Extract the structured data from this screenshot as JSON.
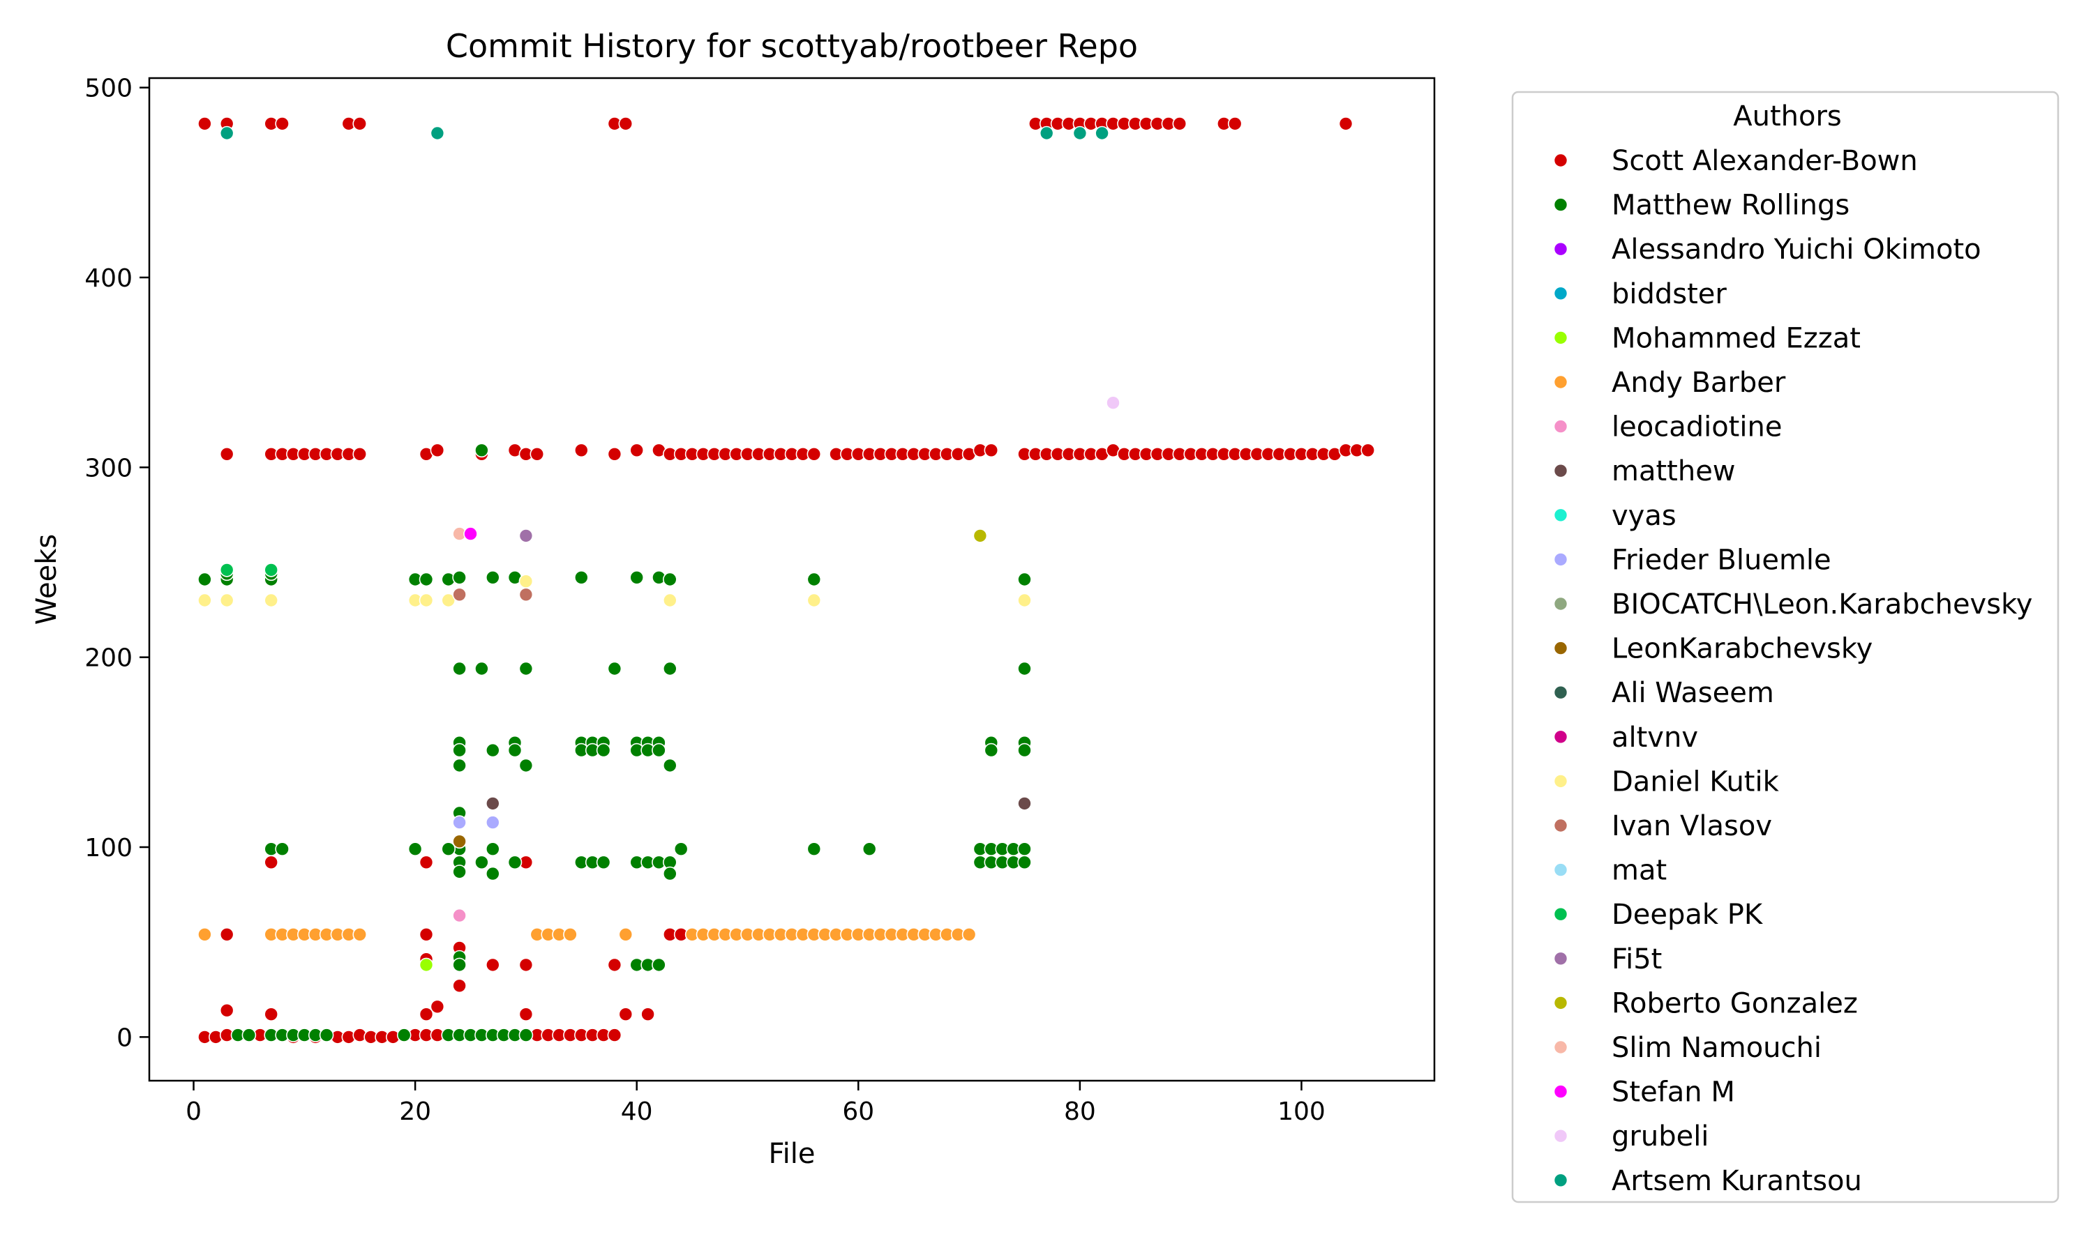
{
  "chart_data": {
    "type": "scatter",
    "title": "Commit History for scottyab/rootbeer Repo",
    "xlabel": "File",
    "ylabel": "Weeks",
    "xlim": [
      -4,
      112
    ],
    "ylim": [
      -23,
      505
    ],
    "xticks": [
      0,
      20,
      40,
      60,
      80,
      100
    ],
    "yticks": [
      0,
      100,
      200,
      300,
      400,
      500
    ],
    "grid": false,
    "legend": {
      "title": "Authors",
      "placement": "outside-right"
    },
    "series": [
      {
        "name": "Scott Alexander-Bown",
        "color": "#d40000",
        "ranges": [
          [
            1,
            1,
            0
          ],
          [
            2,
            2,
            0
          ],
          [
            3,
            3,
            1
          ],
          [
            5,
            8,
            1
          ],
          [
            9,
            9,
            0
          ],
          [
            11,
            11,
            0
          ],
          [
            13,
            14,
            0
          ],
          [
            15,
            15,
            1
          ],
          [
            16,
            18,
            0
          ],
          [
            20,
            31,
            1
          ],
          [
            32,
            38,
            1
          ],
          [
            41,
            41,
            12
          ],
          [
            1,
            1,
            481
          ],
          [
            3,
            3,
            481
          ],
          [
            7,
            8,
            481
          ],
          [
            14,
            15,
            481
          ],
          [
            38,
            39,
            481
          ],
          [
            76,
            89,
            481
          ],
          [
            93,
            94,
            481
          ],
          [
            104,
            104,
            481
          ],
          [
            3,
            3,
            307
          ],
          [
            7,
            15,
            307
          ],
          [
            21,
            21,
            307
          ],
          [
            22,
            22,
            309
          ],
          [
            26,
            26,
            307
          ],
          [
            29,
            29,
            309
          ],
          [
            30,
            31,
            307
          ],
          [
            35,
            35,
            309
          ],
          [
            38,
            38,
            307
          ],
          [
            40,
            40,
            309
          ],
          [
            42,
            42,
            309
          ],
          [
            43,
            56,
            307
          ],
          [
            58,
            70,
            307
          ],
          [
            71,
            72,
            309
          ],
          [
            75,
            82,
            307
          ],
          [
            83,
            83,
            309
          ],
          [
            84,
            103,
            307
          ],
          [
            104,
            106,
            309
          ]
        ],
        "points": [
          [
            3,
            54
          ],
          [
            3,
            14
          ],
          [
            7,
            12
          ],
          [
            7,
            92
          ],
          [
            21,
            92
          ],
          [
            21,
            54
          ],
          [
            21,
            41
          ],
          [
            21,
            12
          ],
          [
            22,
            16
          ],
          [
            24,
            47
          ],
          [
            24,
            38
          ],
          [
            24,
            27
          ],
          [
            27,
            38
          ],
          [
            30,
            92
          ],
          [
            30,
            38
          ],
          [
            30,
            12
          ],
          [
            38,
            38
          ],
          [
            39,
            12
          ],
          [
            43,
            54
          ],
          [
            44,
            54
          ]
        ]
      },
      {
        "name": "Matthew Rollings",
        "color": "#008000",
        "ranges": [
          [
            4,
            5,
            1
          ],
          [
            7,
            8,
            1
          ],
          [
            9,
            12,
            1
          ],
          [
            19,
            19,
            1
          ],
          [
            23,
            30,
            1
          ],
          [
            71,
            74,
            99
          ],
          [
            71,
            74,
            92
          ],
          [
            40,
            42,
            92
          ],
          [
            35,
            37,
            92
          ],
          [
            35,
            37,
            155
          ],
          [
            35,
            37,
            151
          ],
          [
            40,
            42,
            155
          ],
          [
            40,
            42,
            151
          ]
        ],
        "points": [
          [
            1,
            241
          ],
          [
            3,
            241
          ],
          [
            3,
            244
          ],
          [
            7,
            241
          ],
          [
            7,
            244
          ],
          [
            20,
            241
          ],
          [
            21,
            241
          ],
          [
            23,
            241
          ],
          [
            24,
            242
          ],
          [
            24,
            194
          ],
          [
            24,
            155
          ],
          [
            24,
            151
          ],
          [
            24,
            143
          ],
          [
            24,
            118
          ],
          [
            24,
            99
          ],
          [
            24,
            92
          ],
          [
            24,
            87
          ],
          [
            24,
            42
          ],
          [
            24,
            38
          ],
          [
            26,
            194
          ],
          [
            26,
            309
          ],
          [
            26,
            92
          ],
          [
            27,
            242
          ],
          [
            27,
            151
          ],
          [
            27,
            99
          ],
          [
            27,
            86
          ],
          [
            29,
            242
          ],
          [
            29,
            155
          ],
          [
            29,
            151
          ],
          [
            29,
            92
          ],
          [
            30,
            194
          ],
          [
            30,
            143
          ],
          [
            35,
            242
          ],
          [
            38,
            194
          ],
          [
            40,
            242
          ],
          [
            40,
            38
          ],
          [
            41,
            38
          ],
          [
            42,
            242
          ],
          [
            42,
            38
          ],
          [
            43,
            241
          ],
          [
            43,
            194
          ],
          [
            43,
            143
          ],
          [
            43,
            92
          ],
          [
            43,
            86
          ],
          [
            44,
            99
          ],
          [
            56,
            241
          ],
          [
            56,
            99
          ],
          [
            61,
            99
          ],
          [
            72,
            155
          ],
          [
            72,
            151
          ],
          [
            75,
            241
          ],
          [
            75,
            194
          ],
          [
            75,
            155
          ],
          [
            75,
            151
          ],
          [
            75,
            99
          ],
          [
            75,
            92
          ],
          [
            7,
            99
          ],
          [
            8,
            99
          ],
          [
            20,
            99
          ],
          [
            23,
            99
          ]
        ]
      },
      {
        "name": "Alessandro Yuichi Okimoto",
        "color": "#aa00ff",
        "ranges": [],
        "points": []
      },
      {
        "name": "biddster",
        "color": "#00a8c8",
        "ranges": [],
        "points": []
      },
      {
        "name": "Mohammed Ezzat",
        "color": "#99ff00",
        "ranges": [],
        "points": [
          [
            21,
            38
          ]
        ]
      },
      {
        "name": "Andy Barber",
        "color": "#ffa030",
        "ranges": [
          [
            7,
            15,
            54
          ],
          [
            31,
            34,
            54
          ],
          [
            45,
            70,
            54
          ]
        ],
        "points": [
          [
            1,
            54
          ],
          [
            39,
            54
          ]
        ]
      },
      {
        "name": "leocadiotine",
        "color": "#f590c8",
        "ranges": [],
        "points": [
          [
            24,
            64
          ]
        ]
      },
      {
        "name": "matthew",
        "color": "#6b4a4a",
        "ranges": [],
        "points": [
          [
            27,
            123
          ],
          [
            75,
            123
          ]
        ]
      },
      {
        "name": "vyas",
        "color": "#1cf0d0",
        "ranges": [],
        "points": []
      },
      {
        "name": "Frieder Bluemle",
        "color": "#aaaaff",
        "ranges": [],
        "points": [
          [
            24,
            113
          ],
          [
            27,
            113
          ]
        ]
      },
      {
        "name": "BIOCATCH\\Leon.Karabchevsky",
        "color": "#8fa880",
        "ranges": [],
        "points": []
      },
      {
        "name": "LeonKarabchevsky",
        "color": "#996600",
        "ranges": [],
        "points": [
          [
            24,
            103
          ]
        ]
      },
      {
        "name": "Ali Waseem",
        "color": "#2f6050",
        "ranges": [],
        "points": []
      },
      {
        "name": "altvnv",
        "color": "#d0008a",
        "ranges": [],
        "points": []
      },
      {
        "name": "Daniel Kutik",
        "color": "#fff08a",
        "ranges": [],
        "points": [
          [
            1,
            230
          ],
          [
            3,
            230
          ],
          [
            7,
            230
          ],
          [
            20,
            230
          ],
          [
            21,
            230
          ],
          [
            23,
            230
          ],
          [
            30,
            240
          ],
          [
            43,
            230
          ],
          [
            56,
            230
          ],
          [
            75,
            230
          ]
        ]
      },
      {
        "name": "Ivan Vlasov",
        "color": "#c07060",
        "ranges": [],
        "points": [
          [
            24,
            233
          ],
          [
            30,
            233
          ]
        ]
      },
      {
        "name": "mat",
        "color": "#99ddf5",
        "ranges": [],
        "points": []
      },
      {
        "name": "Deepak PK",
        "color": "#00c050",
        "ranges": [],
        "points": [
          [
            3,
            246
          ],
          [
            7,
            246
          ]
        ]
      },
      {
        "name": "Fi5t",
        "color": "#a070a8",
        "ranges": [],
        "points": [
          [
            30,
            264
          ]
        ]
      },
      {
        "name": "Roberto Gonzalez",
        "color": "#b8b800",
        "ranges": [],
        "points": [
          [
            71,
            264
          ]
        ]
      },
      {
        "name": "Slim Namouchi",
        "color": "#f8b8a8",
        "ranges": [],
        "points": [
          [
            24,
            265
          ]
        ]
      },
      {
        "name": "Stefan M",
        "color": "#ff00ff",
        "ranges": [],
        "points": [
          [
            25,
            265
          ]
        ]
      },
      {
        "name": "grubeli",
        "color": "#f0c8f8",
        "ranges": [],
        "points": [
          [
            83,
            334
          ]
        ]
      },
      {
        "name": "Artsem Kurantsou",
        "color": "#00a080",
        "ranges": [],
        "points": [
          [
            3,
            476
          ],
          [
            22,
            476
          ],
          [
            77,
            476
          ],
          [
            80,
            476
          ],
          [
            82,
            476
          ]
        ]
      }
    ]
  }
}
